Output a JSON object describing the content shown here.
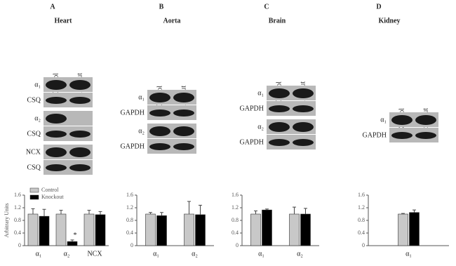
{
  "chart_data": [
    {
      "type": "bar",
      "panel_label": "A",
      "title": "Heart",
      "ylabel": "Arbitrary Units",
      "blot": {
        "lanes": [
          "Control",
          "Knockout"
        ],
        "groups": [
          [
            "α₁",
            "CSQ"
          ],
          [
            "α₂",
            "CSQ"
          ],
          [
            "NCX",
            "CSQ"
          ]
        ]
      },
      "categories": [
        "α₁",
        "α₂",
        "NCX"
      ],
      "series": [
        {
          "name": "Control",
          "color": "#c8c8c8",
          "values": [
            1.0,
            1.0,
            1.0
          ],
          "errors": [
            0.17,
            0.12,
            0.12
          ]
        },
        {
          "name": "Knockout",
          "color": "#000000",
          "values": [
            0.93,
            0.13,
            0.98
          ],
          "errors": [
            0.22,
            0.05,
            0.1
          ]
        }
      ],
      "annotation": "*",
      "ylim": [
        0,
        1.6
      ],
      "yticks": [
        0,
        0.4,
        0.8,
        1.2,
        1.6
      ],
      "legend": "top-left"
    },
    {
      "type": "bar",
      "panel_label": "B",
      "title": "Aorta",
      "blot": {
        "lanes": [
          "Control",
          "Knockout"
        ],
        "groups": [
          [
            "α₁",
            "GAPDH"
          ],
          [
            "α₂",
            "GAPDH"
          ]
        ]
      },
      "categories": [
        "α₁",
        "α₂"
      ],
      "series": [
        {
          "name": "Control",
          "color": "#c8c8c8",
          "values": [
            1.0,
            1.0
          ],
          "errors": [
            0.05,
            0.4
          ]
        },
        {
          "name": "Knockout",
          "color": "#000000",
          "values": [
            0.95,
            0.98
          ],
          "errors": [
            0.1,
            0.3
          ]
        }
      ],
      "ylim": [
        0,
        1.6
      ],
      "yticks": [
        0,
        0.4,
        0.8,
        1.2,
        1.6
      ]
    },
    {
      "type": "bar",
      "panel_label": "C",
      "title": "Brain",
      "blot": {
        "lanes": [
          "Control",
          "Knockout"
        ],
        "groups": [
          [
            "α₁",
            "GAPDH"
          ],
          [
            "α₂",
            "GAPDH"
          ]
        ]
      },
      "categories": [
        "α₁",
        "α₂"
      ],
      "series": [
        {
          "name": "Control",
          "color": "#c8c8c8",
          "values": [
            1.0,
            1.0
          ],
          "errors": [
            0.1,
            0.22
          ]
        },
        {
          "name": "Knockout",
          "color": "#000000",
          "values": [
            1.13,
            1.0
          ],
          "errors": [
            0.03,
            0.18
          ]
        }
      ],
      "ylim": [
        0,
        1.6
      ],
      "yticks": [
        0,
        0.4,
        0.8,
        1.2,
        1.6
      ]
    },
    {
      "type": "bar",
      "panel_label": "D",
      "title": "Kidney",
      "blot": {
        "lanes": [
          "Contr ol",
          "Knoc kout"
        ],
        "groups": [
          [
            "α₁",
            "GAPDH"
          ]
        ]
      },
      "categories": [
        "α₁"
      ],
      "series": [
        {
          "name": "Control",
          "color": "#c8c8c8",
          "values": [
            1.0
          ],
          "errors": [
            0.02
          ]
        },
        {
          "name": "Knockout",
          "color": "#000000",
          "values": [
            1.05
          ],
          "errors": [
            0.08
          ]
        }
      ],
      "ylim": [
        0,
        1.6
      ],
      "yticks": [
        0,
        0.4,
        0.8,
        1.2,
        1.6
      ]
    }
  ]
}
